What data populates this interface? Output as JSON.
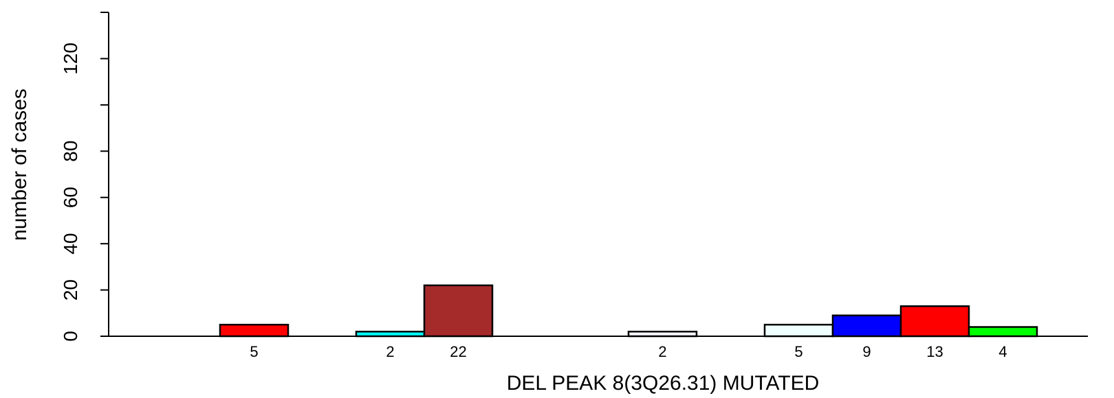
{
  "chart_data": {
    "type": "bar",
    "xlabel": "DEL PEAK  8(3Q26.31) MUTATED",
    "ylabel": "number of cases",
    "ylim": [
      0,
      140
    ],
    "yticks": [
      0,
      20,
      40,
      60,
      80,
      100,
      120,
      140
    ],
    "ytick_labels": [
      "0",
      "20",
      "40",
      "60",
      "80",
      "",
      "120",
      ""
    ],
    "grid": false,
    "bars": [
      {
        "slot": 0,
        "value": 5,
        "color": "#ff0000"
      },
      {
        "slot": 2,
        "value": 2,
        "color": "#00ffff"
      },
      {
        "slot": 3,
        "value": 22,
        "color": "#a52a2a"
      },
      {
        "slot": 6,
        "value": 2,
        "color": "#f5f5fb"
      },
      {
        "slot": 8,
        "value": 5,
        "color": "#f0ffff"
      },
      {
        "slot": 9,
        "value": 9,
        "color": "#0000ff"
      },
      {
        "slot": 10,
        "value": 13,
        "color": "#ff0000"
      },
      {
        "slot": 11,
        "value": 4,
        "color": "#00ff00"
      }
    ]
  }
}
